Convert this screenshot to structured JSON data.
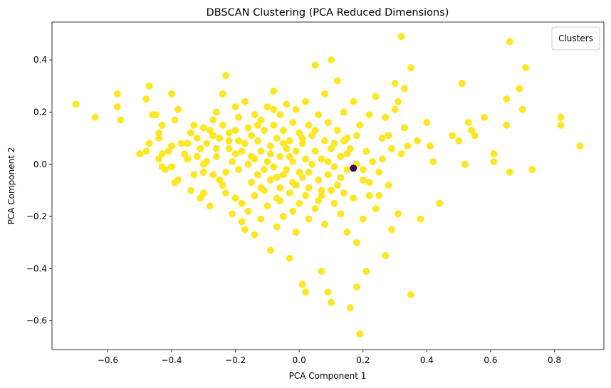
{
  "chart_data": {
    "type": "scatter",
    "title": "DBSCAN Clustering (PCA Reduced Dimensions)",
    "xlabel": "PCA Component 1",
    "ylabel": "PCA Component 2",
    "xlim": [
      -0.775,
      0.955
    ],
    "ylim": [
      -0.71,
      0.545
    ],
    "xticks": [
      -0.6,
      -0.4,
      -0.2,
      0.0,
      0.2,
      0.4,
      0.6,
      0.8
    ],
    "xtick_labels": [
      "−0.6",
      "−0.4",
      "−0.2",
      "0.0",
      "0.2",
      "0.4",
      "0.6",
      "0.8"
    ],
    "yticks": [
      -0.6,
      -0.4,
      -0.2,
      0.0,
      0.2,
      0.4
    ],
    "ytick_labels": [
      "−0.6",
      "−0.4",
      "−0.2",
      "0.0",
      "0.2",
      "0.4"
    ],
    "grid": false,
    "legend": {
      "title": "Clusters",
      "placement": "top-right",
      "entries": []
    },
    "colors": {
      "cluster_0": "#fde725",
      "noise": "#440154"
    },
    "series": [
      {
        "color": "#fde725",
        "points": [
          [
            -0.7,
            0.23
          ],
          [
            -0.64,
            0.18
          ],
          [
            -0.57,
            0.27
          ],
          [
            -0.57,
            0.22
          ],
          [
            -0.56,
            0.17
          ],
          [
            -0.5,
            0.04
          ],
          [
            -0.48,
            0.05
          ],
          [
            -0.48,
            0.25
          ],
          [
            -0.47,
            0.08
          ],
          [
            -0.47,
            0.3
          ],
          [
            -0.46,
            0.19
          ],
          [
            -0.45,
            0.19
          ],
          [
            -0.44,
            0.12
          ],
          [
            -0.44,
            0.1
          ],
          [
            -0.44,
            0.02
          ],
          [
            -0.43,
            0.04
          ],
          [
            -0.43,
            0.15
          ],
          [
            -0.43,
            -0.01
          ],
          [
            -0.42,
            -0.02
          ],
          [
            -0.41,
            0.05
          ],
          [
            -0.4,
            0.07
          ],
          [
            -0.4,
            -0.01
          ],
          [
            -0.4,
            0.27
          ],
          [
            -0.39,
            0.17
          ],
          [
            -0.39,
            -0.07
          ],
          [
            -0.38,
            -0.06
          ],
          [
            -0.38,
            0.21
          ],
          [
            -0.37,
            0.08
          ],
          [
            -0.36,
            0.04
          ],
          [
            -0.35,
            0.02
          ],
          [
            -0.34,
            0.12
          ],
          [
            -0.34,
            -0.1
          ],
          [
            -0.33,
            -0.04
          ],
          [
            -0.33,
            0.15
          ],
          [
            -0.32,
            0.1
          ],
          [
            -0.32,
            0.03
          ],
          [
            -0.31,
            0.06
          ],
          [
            -0.31,
            -0.13
          ],
          [
            -0.3,
            -0.11
          ],
          [
            -0.3,
            0.14
          ],
          [
            -0.3,
            -0.03
          ],
          [
            -0.29,
            0.08
          ],
          [
            -0.29,
            0.01
          ],
          [
            -0.28,
            0.13
          ],
          [
            -0.28,
            -0.16
          ],
          [
            -0.27,
            0.17
          ],
          [
            -0.27,
            -0.04
          ],
          [
            -0.26,
            0.03
          ],
          [
            -0.26,
            0.06
          ],
          [
            -0.25,
            -0.06
          ],
          [
            -0.25,
            0.1
          ],
          [
            -0.24,
            0.15
          ],
          [
            -0.24,
            0.27
          ],
          [
            -0.24,
            -0.08
          ],
          [
            -0.23,
            0.34
          ],
          [
            -0.23,
            -0.03
          ],
          [
            -0.22,
            0.09
          ],
          [
            -0.22,
            0.12
          ],
          [
            -0.21,
            -0.19
          ],
          [
            -0.21,
            0.01
          ],
          [
            -0.2,
            0.22
          ],
          [
            -0.2,
            0.04
          ],
          [
            -0.2,
            -0.13
          ],
          [
            -0.19,
            -0.02
          ],
          [
            -0.19,
            0.18
          ],
          [
            -0.18,
            -0.22
          ],
          [
            -0.18,
            0.05
          ],
          [
            -0.17,
            -0.25
          ],
          [
            -0.17,
            0.08
          ],
          [
            -0.17,
            0.24
          ],
          [
            -0.16,
            0.0
          ],
          [
            -0.16,
            -0.18
          ],
          [
            -0.16,
            0.14
          ],
          [
            -0.15,
            -0.07
          ],
          [
            -0.15,
            0.11
          ],
          [
            -0.14,
            -0.27
          ],
          [
            -0.14,
            0.02
          ],
          [
            -0.14,
            -0.12
          ],
          [
            -0.13,
            0.09
          ],
          [
            -0.13,
            -0.04
          ],
          [
            -0.12,
            0.17
          ],
          [
            -0.12,
            -0.21
          ],
          [
            -0.12,
            0.05
          ],
          [
            -0.11,
            -0.1
          ],
          [
            -0.11,
            0.13
          ],
          [
            -0.1,
            0.01
          ],
          [
            -0.1,
            -0.16
          ],
          [
            -0.1,
            0.22
          ],
          [
            -0.09,
            -0.33
          ],
          [
            -0.09,
            0.07
          ],
          [
            -0.09,
            -0.06
          ],
          [
            -0.08,
            0.28
          ],
          [
            -0.08,
            0.15
          ],
          [
            -0.08,
            -0.01
          ],
          [
            -0.07,
            -0.24
          ],
          [
            -0.07,
            0.1
          ],
          [
            -0.07,
            -0.13
          ],
          [
            -0.06,
            0.03
          ],
          [
            -0.06,
            0.19
          ],
          [
            -0.06,
            -0.09
          ],
          [
            -0.05,
            -0.04
          ],
          [
            -0.05,
            0.13
          ],
          [
            -0.05,
            -0.2
          ],
          [
            -0.04,
            0.06
          ],
          [
            -0.04,
            -0.02
          ],
          [
            -0.04,
            0.23
          ],
          [
            -0.03,
            -0.36
          ],
          [
            -0.03,
            0.09
          ],
          [
            -0.03,
            -0.11
          ],
          [
            -0.02,
            0.01
          ],
          [
            -0.02,
            0.16
          ],
          [
            -0.02,
            -0.07
          ],
          [
            -0.01,
            -0.26
          ],
          [
            -0.01,
            0.05
          ],
          [
            -0.01,
            0.21
          ],
          [
            0.0,
            -0.03
          ],
          [
            0.0,
            0.12
          ],
          [
            0.0,
            -0.15
          ],
          [
            0.01,
            -0.46
          ],
          [
            0.01,
            0.08
          ],
          [
            0.01,
            -0.05
          ],
          [
            0.02,
            0.24
          ],
          [
            0.02,
            -0.49
          ],
          [
            0.02,
            0.02
          ],
          [
            0.03,
            -0.21
          ],
          [
            0.03,
            0.15
          ],
          [
            0.03,
            -0.09
          ],
          [
            0.04,
            0.0
          ],
          [
            0.04,
            0.11
          ],
          [
            0.05,
            -0.17
          ],
          [
            0.05,
            0.38
          ],
          [
            0.05,
            0.05
          ],
          [
            0.06,
            -0.06
          ],
          [
            0.06,
            0.19
          ],
          [
            0.07,
            -0.12
          ],
          [
            0.07,
            0.02
          ],
          [
            0.07,
            -0.41
          ],
          [
            0.08,
            0.27
          ],
          [
            0.08,
            0.09
          ],
          [
            0.08,
            -0.23
          ],
          [
            0.09,
            -0.04
          ],
          [
            0.09,
            0.16
          ],
          [
            0.09,
            -0.49
          ],
          [
            0.1,
            0.4
          ],
          [
            0.1,
            -0.53
          ],
          [
            0.1,
            0.06
          ],
          [
            0.11,
            -0.01
          ],
          [
            0.11,
            -0.15
          ],
          [
            0.12,
            0.13
          ],
          [
            0.12,
            -0.08
          ],
          [
            0.12,
            0.32
          ],
          [
            0.13,
            0.03
          ],
          [
            0.13,
            -0.19
          ],
          [
            0.14,
            0.2
          ],
          [
            0.14,
            -0.11
          ],
          [
            0.15,
            -0.02
          ],
          [
            0.15,
            0.1
          ],
          [
            0.15,
            -0.26
          ],
          [
            0.16,
            -0.55
          ],
          [
            0.16,
            0.06
          ],
          [
            0.17,
            -0.13
          ],
          [
            0.17,
            0.24
          ],
          [
            0.18,
            -0.47
          ],
          [
            0.18,
            -0.3
          ],
          [
            0.18,
            0.0
          ],
          [
            0.19,
            -0.65
          ],
          [
            0.19,
            0.15
          ],
          [
            0.2,
            -0.06
          ],
          [
            0.2,
            -0.21
          ],
          [
            0.21,
            -0.41
          ],
          [
            0.21,
            0.05
          ],
          [
            0.22,
            0.19
          ],
          [
            0.22,
            -0.12
          ],
          [
            0.23,
            0.01
          ],
          [
            0.24,
            -0.17
          ],
          [
            0.24,
            0.26
          ],
          [
            0.25,
            -0.03
          ],
          [
            0.26,
            0.1
          ],
          [
            0.27,
            -0.35
          ],
          [
            0.27,
            0.18
          ],
          [
            0.28,
            -0.08
          ],
          [
            0.29,
            0.06
          ],
          [
            0.29,
            -0.25
          ],
          [
            0.3,
            0.31
          ],
          [
            0.3,
            0.21
          ],
          [
            0.31,
            -0.19
          ],
          [
            0.31,
            0.24
          ],
          [
            0.32,
            0.49
          ],
          [
            0.32,
            0.04
          ],
          [
            0.33,
            0.29
          ],
          [
            0.33,
            0.14
          ],
          [
            0.34,
            0.07
          ],
          [
            0.35,
            0.37
          ],
          [
            0.35,
            -0.5
          ],
          [
            0.37,
            0.09
          ],
          [
            0.38,
            -0.21
          ],
          [
            0.4,
            0.16
          ],
          [
            0.41,
            0.07
          ],
          [
            0.42,
            0.01
          ],
          [
            0.44,
            -0.15
          ],
          [
            0.48,
            0.11
          ],
          [
            0.5,
            0.09
          ],
          [
            0.51,
            0.31
          ],
          [
            0.52,
            0.0
          ],
          [
            0.53,
            0.16
          ],
          [
            0.54,
            0.13
          ],
          [
            0.55,
            0.11
          ],
          [
            0.58,
            0.18
          ],
          [
            0.61,
            0.04
          ],
          [
            0.61,
            0.01
          ],
          [
            0.65,
            0.25
          ],
          [
            0.65,
            0.15
          ],
          [
            0.66,
            0.47
          ],
          [
            0.66,
            -0.03
          ],
          [
            0.69,
            0.29
          ],
          [
            0.7,
            0.21
          ],
          [
            0.71,
            0.37
          ],
          [
            0.73,
            -0.02
          ],
          [
            0.82,
            0.18
          ],
          [
            0.82,
            0.15
          ],
          [
            0.88,
            0.07
          ],
          [
            -0.35,
            0.08
          ],
          [
            -0.27,
            0.11
          ],
          [
            -0.22,
            0.06
          ],
          [
            -0.19,
            0.09
          ],
          [
            -0.15,
            0.03
          ],
          [
            -0.13,
            0.15
          ],
          [
            -0.11,
            -0.02
          ],
          [
            -0.09,
            0.04
          ],
          [
            -0.07,
            -0.05
          ],
          [
            -0.05,
            0.08
          ],
          [
            -0.03,
            0.03
          ],
          [
            -0.01,
            -0.08
          ],
          [
            0.01,
            0.1
          ],
          [
            0.03,
            -0.03
          ],
          [
            0.05,
            0.13
          ],
          [
            0.07,
            -0.1
          ],
          [
            0.09,
            0.01
          ],
          [
            0.11,
            0.08
          ],
          [
            0.13,
            -0.05
          ],
          [
            0.15,
            0.04
          ],
          [
            0.02,
            -0.12
          ],
          [
            -0.02,
            -0.18
          ],
          [
            0.06,
            -0.14
          ],
          [
            -0.06,
            -0.14
          ],
          [
            0.1,
            -0.1
          ],
          [
            -0.23,
            -0.11
          ],
          [
            -0.18,
            -0.15
          ],
          [
            -0.12,
            -0.09
          ],
          [
            0.14,
            0.09
          ],
          [
            0.18,
            0.11
          ],
          [
            0.2,
            -0.02
          ],
          [
            0.22,
            -0.07
          ],
          [
            0.25,
            -0.12
          ],
          [
            0.26,
            0.02
          ],
          [
            0.28,
            0.11
          ],
          [
            -0.3,
            0.0
          ],
          [
            -0.26,
            0.2
          ],
          [
            -0.2,
            0.13
          ],
          [
            -0.14,
            0.19
          ],
          [
            -0.08,
            0.21
          ]
        ]
      },
      {
        "color": "#440154",
        "points": [
          [
            0.17,
            -0.015
          ]
        ]
      }
    ]
  }
}
